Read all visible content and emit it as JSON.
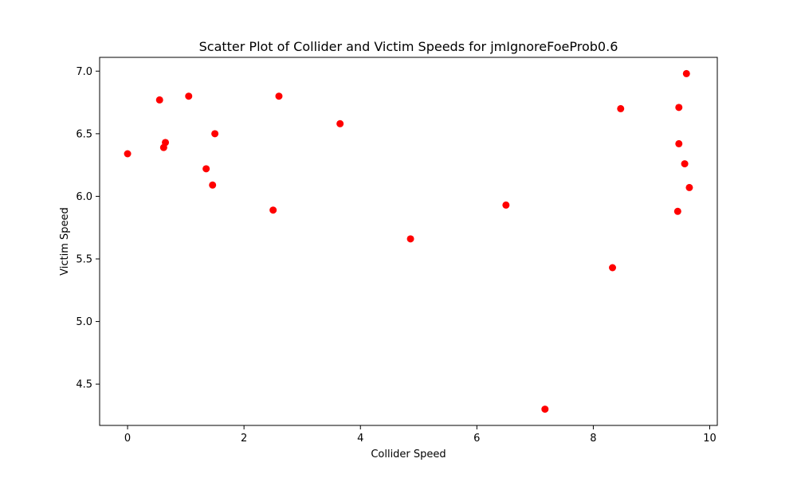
{
  "chart_data": {
    "type": "scatter",
    "title": "Scatter Plot of Collider and Victim Speeds for jmIgnoreFoeProb0.6",
    "xlabel": "Collider Speed",
    "ylabel": "Victim Speed",
    "xlim": [
      -0.48,
      10.13
    ],
    "ylim": [
      4.17,
      7.11
    ],
    "xticks": [
      0,
      2,
      4,
      6,
      8,
      10
    ],
    "xtick_labels": [
      "0",
      "2",
      "4",
      "6",
      "8",
      "10"
    ],
    "yticks": [
      4.5,
      5.0,
      5.5,
      6.0,
      6.5,
      7.0
    ],
    "ytick_labels": [
      "4.5",
      "5.0",
      "5.5",
      "6.0",
      "6.5",
      "7.0"
    ],
    "grid": false,
    "marker_color": "#ff0000",
    "points": [
      {
        "x": 0.0,
        "y": 6.34
      },
      {
        "x": 0.55,
        "y": 6.77
      },
      {
        "x": 0.62,
        "y": 6.39
      },
      {
        "x": 0.65,
        "y": 6.43
      },
      {
        "x": 1.05,
        "y": 6.8
      },
      {
        "x": 1.35,
        "y": 6.22
      },
      {
        "x": 1.46,
        "y": 6.09
      },
      {
        "x": 1.5,
        "y": 6.5
      },
      {
        "x": 2.5,
        "y": 5.89
      },
      {
        "x": 2.6,
        "y": 6.8
      },
      {
        "x": 3.65,
        "y": 6.58
      },
      {
        "x": 4.86,
        "y": 5.66
      },
      {
        "x": 6.5,
        "y": 5.93
      },
      {
        "x": 7.17,
        "y": 4.3
      },
      {
        "x": 8.33,
        "y": 5.43
      },
      {
        "x": 8.47,
        "y": 6.7
      },
      {
        "x": 9.45,
        "y": 5.88
      },
      {
        "x": 9.47,
        "y": 6.71
      },
      {
        "x": 9.47,
        "y": 6.42
      },
      {
        "x": 9.57,
        "y": 6.26
      },
      {
        "x": 9.6,
        "y": 6.98
      },
      {
        "x": 9.65,
        "y": 6.07
      }
    ]
  }
}
